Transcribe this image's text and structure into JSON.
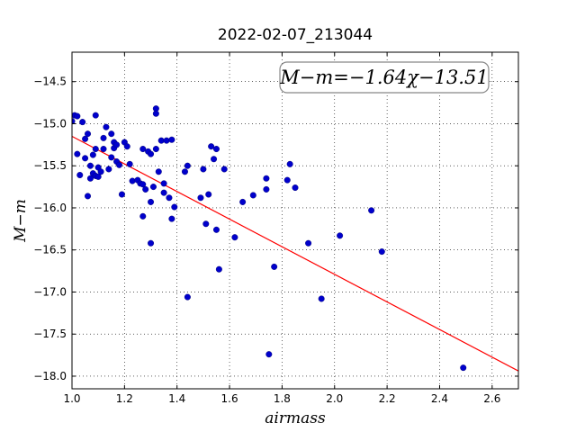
{
  "chart_data": {
    "type": "scatter",
    "title": "2022-02-07_213044",
    "xlabel": "airmass",
    "ylabel": "M−m",
    "xlim": [
      1.0,
      2.7
    ],
    "ylim": [
      -18.15,
      -14.15
    ],
    "x_ticks": [
      1.0,
      1.2,
      1.4,
      1.6,
      1.8,
      2.0,
      2.2,
      2.4,
      2.6
    ],
    "x_tick_labels": [
      "1.0",
      "1.2",
      "1.4",
      "1.6",
      "1.8",
      "2.0",
      "2.2",
      "2.4",
      "2.6"
    ],
    "y_ticks": [
      -14.5,
      -15.0,
      -15.5,
      -16.0,
      -16.5,
      -17.0,
      -17.5,
      -18.0
    ],
    "y_tick_labels": [
      "−14.5",
      "−15.0",
      "−15.5",
      "−16.0",
      "−16.5",
      "−17.0",
      "−17.5",
      "−18.0"
    ],
    "grid": true,
    "grid_style": "dotted",
    "annotation": "M−m=−1.64χ−13.51",
    "annotation_position": "top-right",
    "fit_line": {
      "slope": -1.64,
      "intercept": -13.51,
      "color": "#ff0000"
    },
    "point_color": "#0000cc",
    "series": [
      {
        "points": [
          [
            1.0,
            -14.97
          ],
          [
            1.01,
            -14.9
          ],
          [
            1.02,
            -14.91
          ],
          [
            1.02,
            -15.36
          ],
          [
            1.03,
            -15.61
          ],
          [
            1.04,
            -14.98
          ],
          [
            1.05,
            -15.18
          ],
          [
            1.05,
            -15.41
          ],
          [
            1.06,
            -15.86
          ],
          [
            1.06,
            -15.12
          ],
          [
            1.07,
            -15.5
          ],
          [
            1.07,
            -15.65
          ],
          [
            1.08,
            -15.59
          ],
          [
            1.08,
            -15.37
          ],
          [
            1.09,
            -15.62
          ],
          [
            1.09,
            -14.9
          ],
          [
            1.09,
            -15.3
          ],
          [
            1.1,
            -15.52
          ],
          [
            1.1,
            -15.63
          ],
          [
            1.11,
            -15.57
          ],
          [
            1.12,
            -15.17
          ],
          [
            1.12,
            -15.3
          ],
          [
            1.13,
            -15.04
          ],
          [
            1.14,
            -15.54
          ],
          [
            1.15,
            -15.12
          ],
          [
            1.15,
            -15.4
          ],
          [
            1.16,
            -15.22
          ],
          [
            1.16,
            -15.29
          ],
          [
            1.17,
            -15.25
          ],
          [
            1.17,
            -15.45
          ],
          [
            1.18,
            -15.49
          ],
          [
            1.19,
            -15.84
          ],
          [
            1.2,
            -15.22
          ],
          [
            1.21,
            -15.27
          ],
          [
            1.22,
            -15.48
          ],
          [
            1.23,
            -15.68
          ],
          [
            1.25,
            -15.67
          ],
          [
            1.26,
            -15.71
          ],
          [
            1.27,
            -15.3
          ],
          [
            1.27,
            -15.72
          ],
          [
            1.27,
            -16.1
          ],
          [
            1.28,
            -15.78
          ],
          [
            1.29,
            -15.33
          ],
          [
            1.3,
            -15.36
          ],
          [
            1.3,
            -15.93
          ],
          [
            1.3,
            -16.42
          ],
          [
            1.31,
            -15.75
          ],
          [
            1.32,
            -14.82
          ],
          [
            1.32,
            -14.88
          ],
          [
            1.32,
            -15.3
          ],
          [
            1.33,
            -15.57
          ],
          [
            1.34,
            -15.2
          ],
          [
            1.35,
            -15.71
          ],
          [
            1.35,
            -15.82
          ],
          [
            1.36,
            -15.2
          ],
          [
            1.37,
            -15.88
          ],
          [
            1.38,
            -15.19
          ],
          [
            1.38,
            -16.13
          ],
          [
            1.39,
            -15.99
          ],
          [
            1.43,
            -15.57
          ],
          [
            1.44,
            -15.5
          ],
          [
            1.44,
            -17.06
          ],
          [
            1.49,
            -15.88
          ],
          [
            1.5,
            -15.54
          ],
          [
            1.51,
            -16.19
          ],
          [
            1.52,
            -15.84
          ],
          [
            1.53,
            -15.27
          ],
          [
            1.54,
            -15.42
          ],
          [
            1.55,
            -16.26
          ],
          [
            1.55,
            -15.3
          ],
          [
            1.56,
            -16.73
          ],
          [
            1.58,
            -15.54
          ],
          [
            1.62,
            -16.35
          ],
          [
            1.65,
            -15.93
          ],
          [
            1.69,
            -15.85
          ],
          [
            1.74,
            -15.65
          ],
          [
            1.74,
            -15.78
          ],
          [
            1.75,
            -17.74
          ],
          [
            1.77,
            -16.7
          ],
          [
            1.82,
            -15.67
          ],
          [
            1.83,
            -15.48
          ],
          [
            1.85,
            -15.76
          ],
          [
            1.9,
            -16.42
          ],
          [
            1.95,
            -17.08
          ],
          [
            2.02,
            -16.33
          ],
          [
            2.14,
            -16.03
          ],
          [
            2.18,
            -16.52
          ],
          [
            2.49,
            -17.9
          ]
        ]
      }
    ]
  }
}
